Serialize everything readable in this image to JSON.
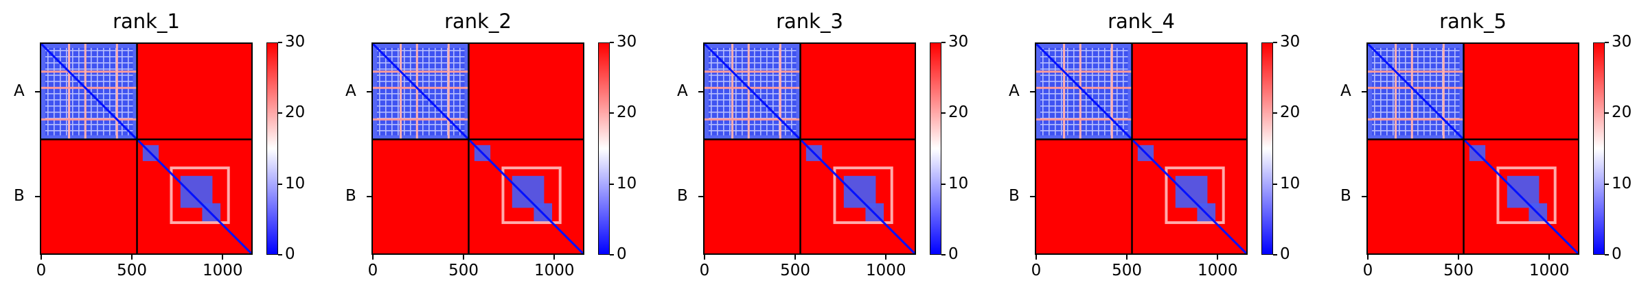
{
  "chart_data": [
    {
      "type": "heatmap",
      "title": "rank_1",
      "y_tick_labels": [
        "A",
        "B"
      ],
      "x_ticks": [
        0,
        500,
        1000
      ],
      "chain_boundary": 528,
      "xlim": [
        0,
        1158
      ],
      "colorbar": {
        "ticks": [
          0,
          10,
          20,
          30
        ],
        "range": [
          0,
          30
        ],
        "colors": [
          "#0000ff",
          "#ffffff",
          "#ff0000"
        ]
      }
    },
    {
      "type": "heatmap",
      "title": "rank_2",
      "y_tick_labels": [
        "A",
        "B"
      ],
      "x_ticks": [
        0,
        500,
        1000
      ],
      "chain_boundary": 528,
      "xlim": [
        0,
        1158
      ],
      "colorbar": {
        "ticks": [
          0,
          10,
          20,
          30
        ],
        "range": [
          0,
          30
        ],
        "colors": [
          "#0000ff",
          "#ffffff",
          "#ff0000"
        ]
      }
    },
    {
      "type": "heatmap",
      "title": "rank_3",
      "y_tick_labels": [
        "A",
        "B"
      ],
      "x_ticks": [
        0,
        500,
        1000
      ],
      "chain_boundary": 528,
      "xlim": [
        0,
        1158
      ],
      "colorbar": {
        "ticks": [
          0,
          10,
          20,
          30
        ],
        "range": [
          0,
          30
        ],
        "colors": [
          "#0000ff",
          "#ffffff",
          "#ff0000"
        ]
      }
    },
    {
      "type": "heatmap",
      "title": "rank_4",
      "y_tick_labels": [
        "A",
        "B"
      ],
      "x_ticks": [
        0,
        500,
        1000
      ],
      "chain_boundary": 528,
      "xlim": [
        0,
        1158
      ],
      "colorbar": {
        "ticks": [
          0,
          10,
          20,
          30
        ],
        "range": [
          0,
          30
        ],
        "colors": [
          "#0000ff",
          "#ffffff",
          "#ff0000"
        ]
      }
    },
    {
      "type": "heatmap",
      "title": "rank_5",
      "y_tick_labels": [
        "A",
        "B"
      ],
      "x_ticks": [
        0,
        500,
        1000
      ],
      "chain_boundary": 528,
      "xlim": [
        0,
        1158
      ],
      "colorbar": {
        "ticks": [
          0,
          10,
          20,
          30
        ],
        "range": [
          0,
          30
        ],
        "colors": [
          "#0000ff",
          "#ffffff",
          "#ff0000"
        ]
      }
    }
  ]
}
